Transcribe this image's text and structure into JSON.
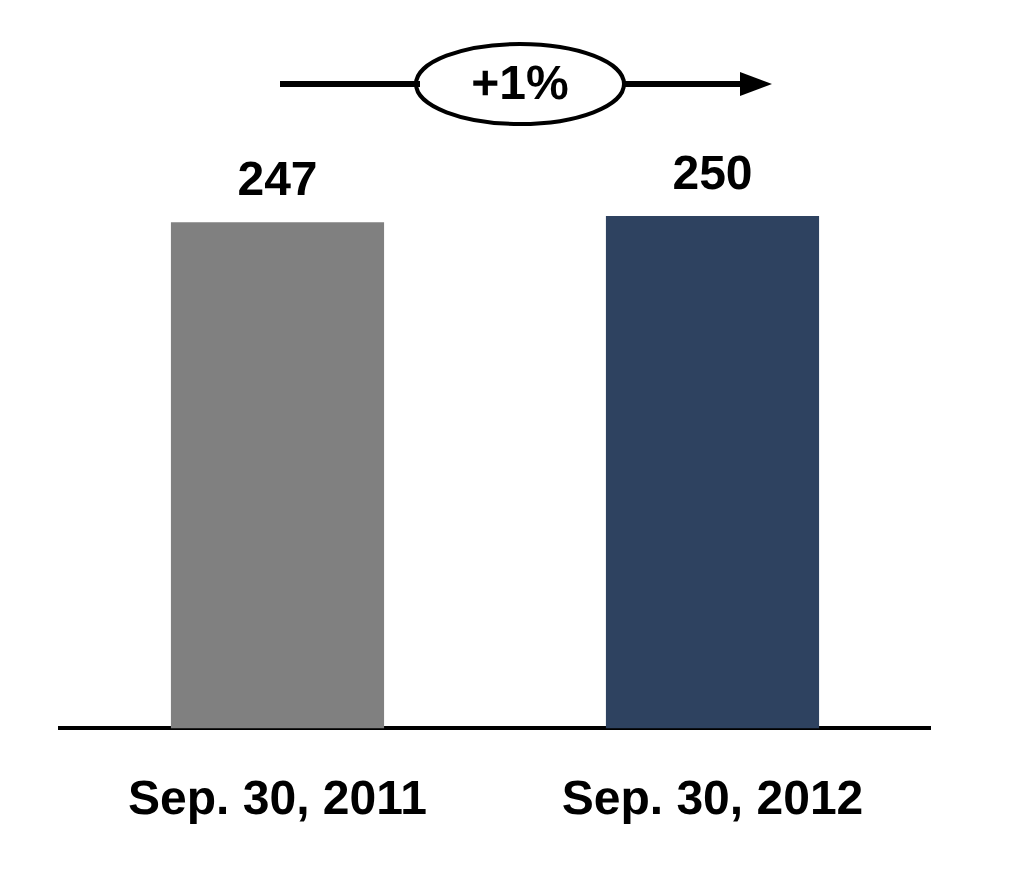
{
  "chart_data": {
    "type": "bar",
    "categories": [
      "Sep. 30, 2011",
      "Sep. 30, 2012"
    ],
    "values": [
      247,
      250
    ],
    "colors": [
      "#808080",
      "#2e4260"
    ],
    "data_labels": true,
    "annotations": [
      "+1%"
    ]
  }
}
